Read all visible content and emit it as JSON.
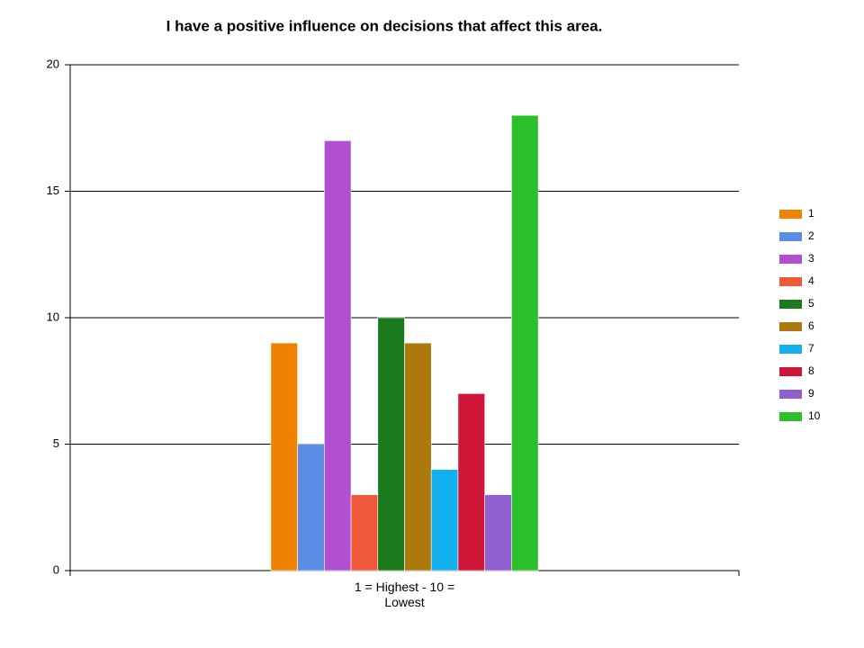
{
  "chart_data": {
    "type": "bar",
    "title": "I have a positive influence on decisions that affect this area.",
    "categories": [
      "1 = Highest - 10 = Lowest"
    ],
    "series": [
      {
        "name": "1",
        "color": "#ef8300",
        "values": [
          9
        ]
      },
      {
        "name": "2",
        "color": "#5b8de4",
        "values": [
          5
        ]
      },
      {
        "name": "3",
        "color": "#b04fcf",
        "values": [
          17
        ]
      },
      {
        "name": "4",
        "color": "#ef5838",
        "values": [
          3
        ]
      },
      {
        "name": "5",
        "color": "#1b7a1b",
        "values": [
          10
        ]
      },
      {
        "name": "6",
        "color": "#ad780c",
        "values": [
          9
        ]
      },
      {
        "name": "7",
        "color": "#12b0ee",
        "values": [
          4
        ]
      },
      {
        "name": "8",
        "color": "#cf1638",
        "values": [
          7
        ]
      },
      {
        "name": "9",
        "color": "#905fd0",
        "values": [
          3
        ]
      },
      {
        "name": "10",
        "color": "#2cbf2c",
        "values": [
          18
        ]
      }
    ],
    "ylim": [
      0,
      20
    ],
    "yticks": [
      0,
      5,
      10,
      15,
      20
    ],
    "grid": true,
    "legend": "right"
  }
}
